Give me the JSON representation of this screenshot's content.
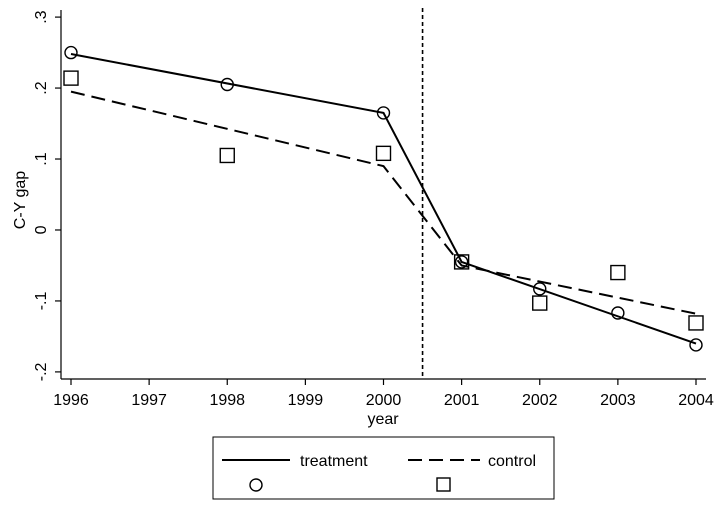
{
  "chart_data": {
    "type": "line",
    "xlabel": "year",
    "ylabel": "C-Y gap",
    "x_ticks": [
      "1996",
      "1997",
      "1998",
      "1999",
      "2000",
      "2001",
      "2002",
      "2003",
      "2004"
    ],
    "y_ticks": [
      "-.2",
      "-.1",
      "0",
      ".1",
      ".2",
      ".3"
    ],
    "y_tick_values": [
      -0.2,
      -0.1,
      0,
      0.1,
      0.2,
      0.3
    ],
    "ylim": [
      -0.21,
      0.31
    ],
    "vertical_line_between": [
      "2000",
      "2001"
    ],
    "grid": false,
    "legend_placement": "bottom",
    "series": [
      {
        "name": "treatment",
        "style": "solid",
        "marker": "circle",
        "points": [
          {
            "x": "1996",
            "y": 0.25
          },
          {
            "x": "1998",
            "y": 0.205
          },
          {
            "x": "2000",
            "y": 0.165
          },
          {
            "x": "2001",
            "y": -0.045
          },
          {
            "x": "2002",
            "y": -0.083
          },
          {
            "x": "2003",
            "y": -0.117
          },
          {
            "x": "2004",
            "y": -0.162
          }
        ],
        "fit": [
          {
            "x": "1996",
            "y": 0.248
          },
          {
            "x": "2000",
            "y": 0.165
          },
          {
            "x": "2001",
            "y": -0.045
          },
          {
            "x": "2004",
            "y": -0.16
          }
        ]
      },
      {
        "name": "control",
        "style": "dashed",
        "marker": "square",
        "points": [
          {
            "x": "1996",
            "y": 0.214
          },
          {
            "x": "1998",
            "y": 0.105
          },
          {
            "x": "2000",
            "y": 0.108
          },
          {
            "x": "2001",
            "y": -0.045
          },
          {
            "x": "2002",
            "y": -0.103
          },
          {
            "x": "2003",
            "y": -0.06
          },
          {
            "x": "2004",
            "y": -0.131
          }
        ],
        "fit": [
          {
            "x": "1996",
            "y": 0.195
          },
          {
            "x": "2000",
            "y": 0.09
          },
          {
            "x": "2001",
            "y": -0.05
          },
          {
            "x": "2004",
            "y": -0.118
          }
        ]
      }
    ],
    "legend": [
      {
        "label": "treatment",
        "style": "solid"
      },
      {
        "label": "control",
        "style": "dashed"
      },
      {
        "label": "",
        "marker": "circle"
      },
      {
        "label": "",
        "marker": "square"
      }
    ]
  }
}
